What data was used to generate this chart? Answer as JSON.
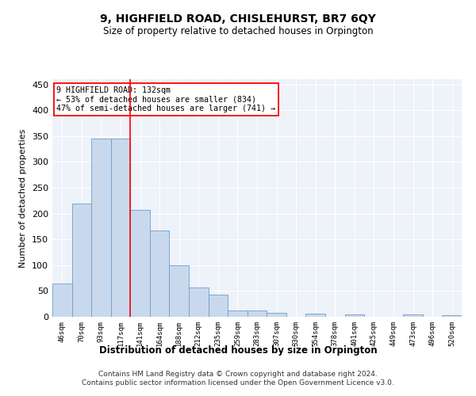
{
  "title": "9, HIGHFIELD ROAD, CHISLEHURST, BR7 6QY",
  "subtitle": "Size of property relative to detached houses in Orpington",
  "xlabel": "Distribution of detached houses by size in Orpington",
  "ylabel": "Number of detached properties",
  "categories": [
    "46sqm",
    "70sqm",
    "93sqm",
    "117sqm",
    "141sqm",
    "164sqm",
    "188sqm",
    "212sqm",
    "235sqm",
    "259sqm",
    "283sqm",
    "307sqm",
    "330sqm",
    "354sqm",
    "378sqm",
    "401sqm",
    "425sqm",
    "449sqm",
    "473sqm",
    "496sqm",
    "520sqm"
  ],
  "bar_heights": [
    65,
    220,
    345,
    345,
    207,
    167,
    99,
    56,
    43,
    13,
    12,
    7,
    0,
    6,
    0,
    5,
    0,
    0,
    4,
    0,
    3
  ],
  "bar_color": "#c9d9ed",
  "bar_edge_color": "#6a9ec8",
  "vline_index": 3.5,
  "annotation_line1": "9 HIGHFIELD ROAD: 132sqm",
  "annotation_line2": "← 53% of detached houses are smaller (834)",
  "annotation_line3": "47% of semi-detached houses are larger (741) →",
  "annotation_box_facecolor": "white",
  "annotation_box_edgecolor": "red",
  "vline_color": "red",
  "ylim": [
    0,
    460
  ],
  "yticks": [
    0,
    50,
    100,
    150,
    200,
    250,
    300,
    350,
    400,
    450
  ],
  "background_color": "#eef2f9",
  "footer1": "Contains HM Land Registry data © Crown copyright and database right 2024.",
  "footer2": "Contains public sector information licensed under the Open Government Licence v3.0."
}
